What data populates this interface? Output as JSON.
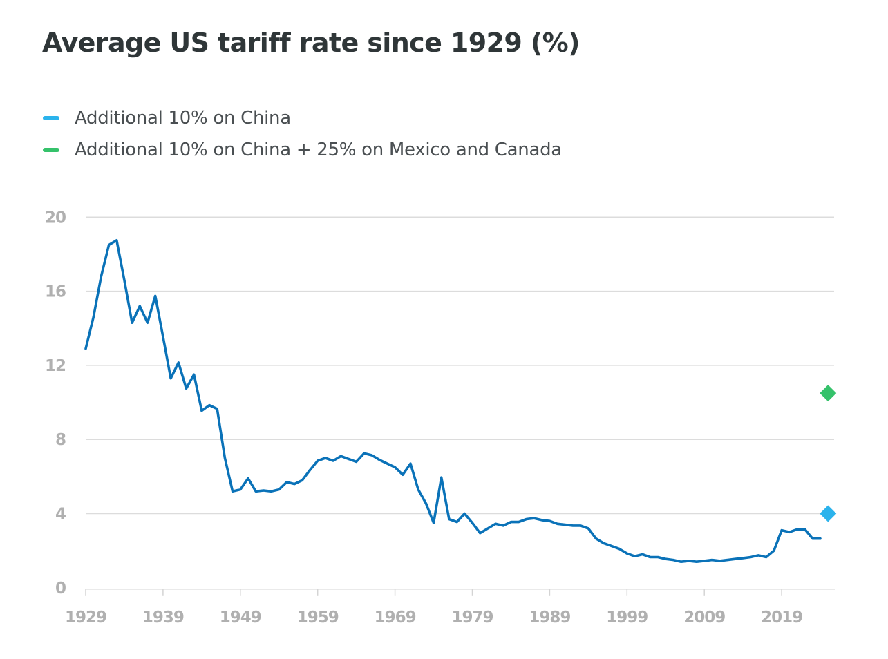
{
  "title": "Average US tariff rate since 1929 (%)",
  "legend": [
    {
      "label": "Additional 10% on China",
      "color": "#2bb3ec"
    },
    {
      "label": "Additional 10% on China + 25% on Mexico and Canada",
      "color": "#35c26b"
    }
  ],
  "colors": {
    "line": "#0a72b8",
    "grid": "#dcdcdc",
    "axis": "#d4d4d4",
    "tick_text": "#b0b0b0",
    "title": "#2f3638"
  },
  "chart_data": {
    "type": "line",
    "title": "Average US tariff rate since 1929 (%)",
    "xlabel": "",
    "ylabel": "",
    "xlim": [
      1929,
      2026
    ],
    "ylim": [
      0,
      20
    ],
    "yticks": [
      0,
      4,
      8,
      12,
      16,
      20
    ],
    "xticks": [
      1929,
      1939,
      1949,
      1959,
      1969,
      1979,
      1989,
      1999,
      2009,
      2019
    ],
    "ytick_labels": [
      "0",
      "4",
      "8",
      "12",
      "16",
      "20"
    ],
    "xtick_labels": [
      "1929",
      "1939",
      "1949",
      "1959",
      "1969",
      "1979",
      "1989",
      "1999",
      "2009",
      "2019"
    ],
    "grid": true,
    "legend_position": "top-left",
    "series": [
      {
        "name": "Average US tariff rate",
        "x": [
          1929,
          1930,
          1931,
          1932,
          1933,
          1934,
          1935,
          1936,
          1937,
          1938,
          1939,
          1940,
          1941,
          1942,
          1943,
          1944,
          1945,
          1946,
          1947,
          1948,
          1949,
          1950,
          1951,
          1952,
          1953,
          1954,
          1955,
          1956,
          1957,
          1958,
          1959,
          1960,
          1961,
          1962,
          1963,
          1964,
          1965,
          1966,
          1967,
          1968,
          1969,
          1970,
          1971,
          1972,
          1973,
          1974,
          1975,
          1976,
          1977,
          1978,
          1979,
          1980,
          1981,
          1982,
          1983,
          1984,
          1985,
          1986,
          1987,
          1988,
          1989,
          1990,
          1991,
          1992,
          1993,
          1994,
          1995,
          1996,
          1997,
          1998,
          1999,
          2000,
          2001,
          2002,
          2003,
          2004,
          2005,
          2006,
          2007,
          2008,
          2009,
          2010,
          2011,
          2012,
          2013,
          2014,
          2015,
          2016,
          2017,
          2018,
          2019,
          2020,
          2021,
          2022,
          2023,
          2024
        ],
        "values": [
          12.9,
          14.6,
          16.8,
          18.5,
          18.75,
          16.6,
          14.3,
          15.2,
          14.3,
          15.75,
          13.55,
          11.3,
          12.15,
          10.75,
          11.5,
          9.55,
          9.85,
          9.65,
          7.0,
          5.2,
          5.3,
          5.9,
          5.2,
          5.25,
          5.2,
          5.3,
          5.7,
          5.6,
          5.8,
          6.35,
          6.85,
          7.0,
          6.85,
          7.1,
          6.95,
          6.8,
          7.25,
          7.15,
          6.9,
          6.7,
          6.5,
          6.1,
          6.7,
          5.3,
          4.55,
          3.5,
          5.95,
          3.7,
          3.55,
          4.0,
          3.5,
          2.95,
          3.2,
          3.45,
          3.35,
          3.55,
          3.55,
          3.7,
          3.75,
          3.65,
          3.6,
          3.45,
          3.4,
          3.35,
          3.35,
          3.2,
          2.65,
          2.4,
          2.25,
          2.1,
          1.85,
          1.7,
          1.8,
          1.65,
          1.65,
          1.55,
          1.5,
          1.4,
          1.45,
          1.4,
          1.45,
          1.5,
          1.45,
          1.5,
          1.55,
          1.6,
          1.65,
          1.75,
          1.65,
          2.0,
          3.1,
          3.0,
          3.15,
          3.15,
          2.65,
          2.65
        ]
      },
      {
        "name": "Additional 10% on China",
        "type": "point",
        "marker": "diamond",
        "x": [
          2025
        ],
        "values": [
          4.0
        ]
      },
      {
        "name": "Additional 10% on China + 25% on Mexico and Canada",
        "type": "point",
        "marker": "diamond",
        "x": [
          2025
        ],
        "values": [
          10.5
        ]
      }
    ]
  }
}
